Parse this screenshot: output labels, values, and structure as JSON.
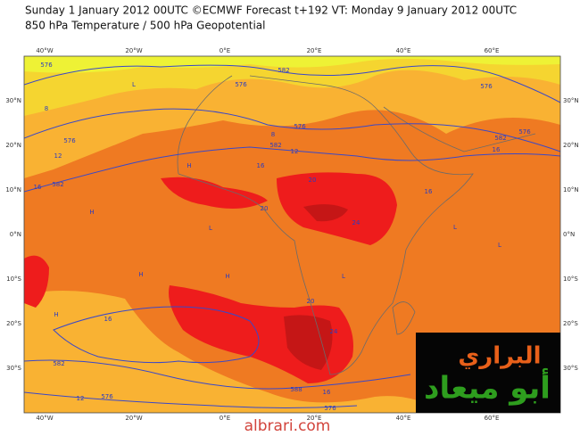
{
  "header": {
    "line1": "Sunday 1 January 2012 00UTC ©ECMWF Forecast t+192 VT: Monday 9 January 2012 00UTC",
    "line2": "850 hPa Temperature / 500 hPa Geopotential"
  },
  "axes": {
    "top": [
      "40°W",
      "20°W",
      "0°E",
      "20°E",
      "40°E",
      "60°E"
    ],
    "bottom": [
      "40°W",
      "20°W",
      "0°E",
      "20°E",
      "40°E",
      "60°E"
    ],
    "left": [
      "30°N",
      "20°N",
      "10°N",
      "0°N",
      "10°S",
      "20°S",
      "30°S"
    ],
    "right": [
      "30°N",
      "20°N",
      "10°N",
      "0°N",
      "10°S",
      "20°S",
      "30°S"
    ]
  },
  "contour_labels": [
    "576",
    "8",
    "12",
    "576",
    "16",
    "582",
    "576",
    "582",
    "576",
    "582",
    "8",
    "12",
    "16",
    "20",
    "20",
    "24",
    "576",
    "582",
    "576",
    "16",
    "16",
    "16",
    "20",
    "24",
    "582",
    "576",
    "12",
    "588",
    "16",
    "576",
    "L",
    "H",
    "H",
    "L",
    "H",
    "L",
    "H",
    "L",
    "H",
    "L"
  ],
  "logo": {
    "line1": "البراري",
    "line2": "أبو ميعاد"
  },
  "watermark": "albrari.com"
}
